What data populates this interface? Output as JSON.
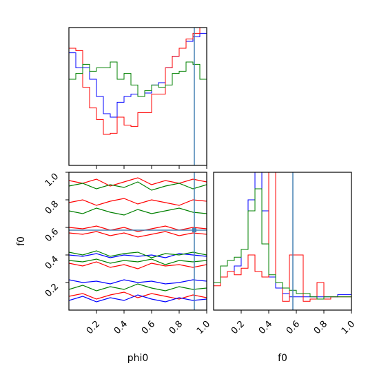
{
  "chart_data": [
    {
      "panel": "phi0-histogram",
      "type": "line",
      "step": true,
      "xlim": [
        0.0,
        1.0
      ],
      "x_edges": [
        0.0,
        0.05,
        0.1,
        0.15,
        0.2,
        0.25,
        0.3,
        0.35,
        0.4,
        0.45,
        0.5,
        0.55,
        0.6,
        0.65,
        0.7,
        0.75,
        0.8,
        0.85,
        0.9,
        0.95,
        1.0
      ],
      "truth_x": 0.91,
      "series": [
        {
          "color": "#0000ff",
          "values": [
            0.98,
            0.85,
            0.85,
            0.75,
            0.6,
            0.45,
            0.42,
            0.55,
            0.6,
            0.62,
            0.6,
            0.63,
            0.7,
            0.72,
            0.85,
            0.95,
            1.02,
            1.08,
            1.12,
            1.15
          ]
        },
        {
          "color": "#ff0000",
          "values": [
            1.02,
            1.0,
            0.68,
            0.5,
            0.4,
            0.27,
            0.28,
            0.42,
            0.35,
            0.34,
            0.46,
            0.46,
            0.62,
            0.62,
            0.85,
            0.95,
            1.02,
            1.1,
            1.15,
            1.2
          ]
        },
        {
          "color": "#008000",
          "values": [
            0.75,
            0.8,
            0.88,
            0.82,
            0.85,
            0.85,
            0.9,
            0.75,
            0.8,
            0.7,
            0.6,
            0.65,
            0.7,
            0.68,
            0.7,
            0.8,
            0.82,
            0.9,
            0.88,
            0.75
          ]
        }
      ]
    },
    {
      "panel": "phi0-f0-contour",
      "type": "line",
      "xlim": [
        0.0,
        1.0
      ],
      "ylim": [
        0.0,
        1.0
      ],
      "yticks": [
        0.2,
        0.4,
        0.6,
        0.8,
        1.0
      ],
      "truth_x": 0.91,
      "truth_y": 0.58,
      "series": [
        {
          "color": "#ff0000",
          "x": [
            0.0,
            0.1,
            0.2,
            0.3,
            0.4,
            0.5,
            0.6,
            0.7,
            0.8,
            0.9,
            1.0
          ],
          "y": [
            0.6,
            0.59,
            0.61,
            0.58,
            0.6,
            0.57,
            0.59,
            0.61,
            0.58,
            0.6,
            0.59
          ]
        },
        {
          "color": "#ff0000",
          "x": [
            0.0,
            0.1,
            0.2,
            0.3,
            0.4,
            0.5,
            0.6,
            0.7,
            0.8,
            0.9,
            1.0
          ],
          "y": [
            0.56,
            0.55,
            0.57,
            0.54,
            0.56,
            0.53,
            0.55,
            0.57,
            0.54,
            0.56,
            0.55
          ]
        },
        {
          "color": "#0000ff",
          "x": [
            0.0,
            0.1,
            0.2,
            0.3,
            0.4,
            0.5,
            0.6,
            0.7,
            0.8,
            0.9,
            1.0
          ],
          "y": [
            0.4,
            0.39,
            0.41,
            0.38,
            0.4,
            0.39,
            0.4,
            0.38,
            0.41,
            0.4,
            0.39
          ]
        },
        {
          "color": "#0000ff",
          "x": [
            0.0,
            0.1,
            0.2,
            0.3,
            0.4,
            0.5,
            0.6,
            0.7,
            0.8,
            0.9,
            1.0
          ],
          "y": [
            0.22,
            0.2,
            0.21,
            0.19,
            0.22,
            0.2,
            0.21,
            0.19,
            0.2,
            0.22,
            0.21
          ]
        },
        {
          "color": "#008000",
          "x": [
            0.0,
            0.1,
            0.2,
            0.3,
            0.4,
            0.5,
            0.6,
            0.7,
            0.8,
            0.9,
            1.0
          ],
          "y": [
            0.42,
            0.4,
            0.43,
            0.39,
            0.41,
            0.42,
            0.38,
            0.41,
            0.4,
            0.42,
            0.4
          ]
        },
        {
          "color": "#008000",
          "x": [
            0.0,
            0.1,
            0.2,
            0.3,
            0.4,
            0.5,
            0.6,
            0.7,
            0.8,
            0.9,
            1.0
          ],
          "y": [
            0.36,
            0.35,
            0.37,
            0.34,
            0.36,
            0.35,
            0.37,
            0.33,
            0.36,
            0.35,
            0.36
          ]
        },
        {
          "color": "#ff0000",
          "x": [
            0.0,
            0.1,
            0.2,
            0.3,
            0.4,
            0.5,
            0.6,
            0.7,
            0.8,
            0.9,
            1.0
          ],
          "y": [
            0.34,
            0.32,
            0.35,
            0.31,
            0.33,
            0.3,
            0.34,
            0.32,
            0.33,
            0.31,
            0.33
          ]
        },
        {
          "color": "#008000",
          "x": [
            0.0,
            0.1,
            0.2,
            0.3,
            0.4,
            0.5,
            0.6,
            0.7,
            0.8,
            0.9,
            1.0
          ],
          "y": [
            0.15,
            0.18,
            0.14,
            0.17,
            0.15,
            0.19,
            0.16,
            0.14,
            0.17,
            0.15,
            0.16
          ]
        },
        {
          "color": "#ff0000",
          "x": [
            0.0,
            0.1,
            0.2,
            0.3,
            0.4,
            0.5,
            0.6,
            0.7,
            0.8,
            0.9,
            1.0
          ],
          "y": [
            0.1,
            0.12,
            0.08,
            0.11,
            0.13,
            0.09,
            0.12,
            0.1,
            0.08,
            0.11,
            0.09
          ]
        },
        {
          "color": "#ff0000",
          "x": [
            0.0,
            0.1,
            0.2,
            0.3,
            0.4,
            0.5,
            0.6,
            0.7,
            0.8,
            0.9,
            1.0
          ],
          "y": [
            0.94,
            0.92,
            0.95,
            0.9,
            0.93,
            0.96,
            0.91,
            0.94,
            0.92,
            0.95,
            0.93
          ]
        },
        {
          "color": "#008000",
          "x": [
            0.0,
            0.1,
            0.2,
            0.3,
            0.4,
            0.5,
            0.6,
            0.7,
            0.8,
            0.9,
            1.0
          ],
          "y": [
            0.9,
            0.92,
            0.88,
            0.91,
            0.89,
            0.93,
            0.87,
            0.9,
            0.92,
            0.88,
            0.91
          ]
        },
        {
          "color": "#ff0000",
          "x": [
            0.0,
            0.1,
            0.2,
            0.3,
            0.4,
            0.5,
            0.6,
            0.7,
            0.8,
            0.9,
            1.0
          ],
          "y": [
            0.78,
            0.8,
            0.76,
            0.79,
            0.81,
            0.77,
            0.8,
            0.78,
            0.76,
            0.8,
            0.79
          ]
        },
        {
          "color": "#008000",
          "x": [
            0.0,
            0.1,
            0.2,
            0.3,
            0.4,
            0.5,
            0.6,
            0.7,
            0.8,
            0.9,
            1.0
          ],
          "y": [
            0.72,
            0.7,
            0.74,
            0.71,
            0.69,
            0.73,
            0.7,
            0.72,
            0.74,
            0.71,
            0.7
          ]
        },
        {
          "color": "#0000ff",
          "x": [
            0.0,
            0.1,
            0.2,
            0.3,
            0.4,
            0.5,
            0.6,
            0.7,
            0.8,
            0.9,
            1.0
          ],
          "y": [
            0.07,
            0.1,
            0.06,
            0.09,
            0.07,
            0.11,
            0.08,
            0.06,
            0.09,
            0.07,
            0.08
          ]
        }
      ]
    },
    {
      "panel": "f0-histogram",
      "type": "line",
      "step": true,
      "xlim": [
        0.0,
        1.0
      ],
      "x_edges": [
        0.0,
        0.05,
        0.1,
        0.15,
        0.2,
        0.25,
        0.3,
        0.35,
        0.4,
        0.45,
        0.5,
        0.55,
        0.6,
        0.65,
        0.7,
        0.75,
        0.8,
        0.85,
        0.9,
        0.95,
        1.0
      ],
      "truth_x": 0.575,
      "series": [
        {
          "color": "#0000ff",
          "values": [
            0.25,
            0.3,
            0.35,
            0.4,
            0.55,
            1.0,
            1.25,
            0.9,
            0.3,
            0.2,
            0.15,
            0.12,
            0.12,
            0.12,
            0.12,
            0.12,
            0.12,
            0.12,
            0.14,
            0.14
          ]
        },
        {
          "color": "#ff0000",
          "values": [
            0.22,
            0.3,
            0.35,
            0.32,
            0.38,
            0.5,
            0.35,
            0.3,
            1.25,
            0.25,
            0.08,
            0.5,
            0.5,
            0.08,
            0.1,
            0.25,
            0.1,
            0.12,
            0.12,
            0.12
          ]
        },
        {
          "color": "#008000",
          "values": [
            0.25,
            0.4,
            0.45,
            0.48,
            0.55,
            0.9,
            1.1,
            0.6,
            0.32,
            0.25,
            0.2,
            0.18,
            0.15,
            0.15,
            0.12,
            0.1,
            0.12,
            0.12,
            0.12,
            0.12
          ]
        }
      ]
    }
  ],
  "axes": {
    "contour_y_label": "f0",
    "contour_x_label": "phi0",
    "f0_hist_x_label": "f0",
    "contour_y_ticks": [
      "0.2",
      "0.4",
      "0.6",
      "0.8",
      "1.0"
    ],
    "contour_x_ticks": [
      "0.2",
      "0.4",
      "0.6",
      "0.8",
      "1.0"
    ],
    "f0_x_ticks": [
      "0.2",
      "0.4",
      "0.6",
      "0.8",
      "1.0"
    ]
  },
  "colors": {
    "truth_line": "#4682b4",
    "frame": "#000000",
    "blue": "#0000ff",
    "red": "#ff0000",
    "green": "#008000"
  }
}
